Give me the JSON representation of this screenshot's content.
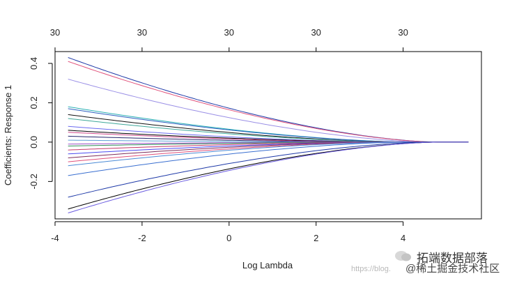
{
  "chart_data": {
    "type": "line",
    "xlabel": "Log Lambda",
    "ylabel": "Coefficients: Response 1",
    "xlim": [
      -4.0,
      5.8
    ],
    "ylim": [
      -0.39,
      0.46
    ],
    "x_ticks": [
      "-4",
      "-2",
      "0",
      "2",
      "4"
    ],
    "x_tick_values": [
      -4,
      -2,
      0,
      2,
      4
    ],
    "y_ticks": [
      "-0.2",
      "0.0",
      "0.2",
      "0.4"
    ],
    "y_tick_values": [
      -0.2,
      0.0,
      0.2,
      0.4
    ],
    "top_ticks": [
      "30",
      "30",
      "30",
      "30",
      "30"
    ],
    "x_start": -3.7,
    "x_end": 5.5,
    "series": [
      {
        "start": 0.43,
        "shrink": 1.2,
        "cutoff": 4.8,
        "color": "#1f3aa8"
      },
      {
        "start": 0.41,
        "shrink": 1.2,
        "cutoff": 4.8,
        "color": "#e0507a"
      },
      {
        "start": 0.32,
        "shrink": 1.15,
        "cutoff": 4.6,
        "color": "#9a8fe6"
      },
      {
        "start": 0.18,
        "shrink": 1.05,
        "cutoff": 4.2,
        "color": "#2bb0b5"
      },
      {
        "start": 0.17,
        "shrink": 1.05,
        "cutoff": 4.2,
        "color": "#2a5fbf"
      },
      {
        "start": 0.14,
        "shrink": 1.0,
        "cutoff": 4.0,
        "color": "#111111"
      },
      {
        "start": 0.12,
        "shrink": 1.0,
        "cutoff": 4.0,
        "color": "#3fa89a"
      },
      {
        "start": 0.08,
        "shrink": 0.95,
        "cutoff": 3.8,
        "color": "#6a6af0"
      },
      {
        "start": 0.06,
        "shrink": 0.95,
        "cutoff": 3.8,
        "color": "#000000"
      },
      {
        "start": 0.05,
        "shrink": 0.9,
        "cutoff": 3.6,
        "color": "#d04a8c"
      },
      {
        "start": 0.03,
        "shrink": 0.9,
        "cutoff": 3.5,
        "color": "#27276e"
      },
      {
        "start": 0.01,
        "shrink": 0.85,
        "cutoff": 3.3,
        "color": "#5b9ed6"
      },
      {
        "start": -0.01,
        "shrink": 0.85,
        "cutoff": 3.3,
        "color": "#9b4fc9"
      },
      {
        "start": -0.02,
        "shrink": 0.9,
        "cutoff": 3.4,
        "color": "#2e8b57"
      },
      {
        "start": -0.04,
        "shrink": 0.9,
        "cutoff": 3.5,
        "color": "#c43a6b"
      },
      {
        "start": -0.06,
        "shrink": 0.95,
        "cutoff": 3.7,
        "color": "#4a4af0"
      },
      {
        "start": -0.08,
        "shrink": 0.95,
        "cutoff": 3.7,
        "color": "#7d2c5a"
      },
      {
        "start": -0.1,
        "shrink": 1.0,
        "cutoff": 3.9,
        "color": "#e0507a"
      },
      {
        "start": -0.12,
        "shrink": 1.0,
        "cutoff": 3.9,
        "color": "#4b8bd6"
      },
      {
        "start": -0.17,
        "shrink": 1.05,
        "cutoff": 4.1,
        "color": "#3a6fd0"
      },
      {
        "start": -0.28,
        "shrink": 1.15,
        "cutoff": 4.6,
        "color": "#1f3aa8"
      },
      {
        "start": -0.34,
        "shrink": 1.2,
        "cutoff": 4.8,
        "color": "#000000"
      },
      {
        "start": -0.36,
        "shrink": 1.2,
        "cutoff": 4.8,
        "color": "#6a5be0"
      }
    ]
  },
  "watermark": {
    "main": "拓端数据部落",
    "url": "https://blog.",
    "sub": "@稀土掘金技术社区"
  }
}
